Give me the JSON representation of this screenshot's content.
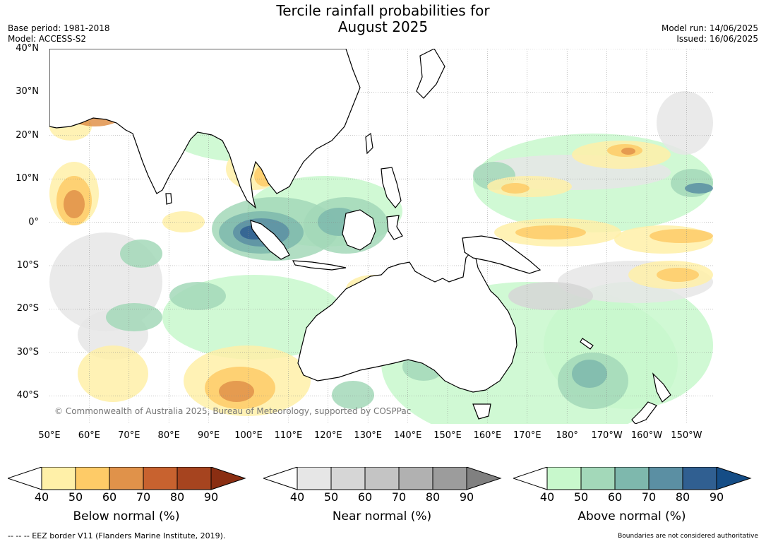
{
  "header": {
    "title_line1": "Tercile rainfall probabilities for",
    "title_line2": "August 2025",
    "base_period": "Base period: 1981-2018",
    "model": "Model: ACCESS-S2",
    "model_run": "Model run: 14/06/2025",
    "issued": "Issued: 16/06/2025"
  },
  "map": {
    "lat_labels": [
      "40°N",
      "30°N",
      "20°N",
      "10°N",
      "0°",
      "10°S",
      "20°S",
      "30°S",
      "40°S"
    ],
    "lon_labels": [
      "50°E",
      "60°E",
      "70°E",
      "80°E",
      "90°E",
      "100°E",
      "110°E",
      "120°E",
      "130°E",
      "140°E",
      "150°E",
      "160°E",
      "170°E",
      "180°",
      "170°W",
      "160°W",
      "150°W"
    ],
    "copyright": "© Commonwealth of Australia 2025, Bureau of Meteorology, supported by COSPPac",
    "colors": {
      "below": [
        "#fff0a8",
        "#fecb67",
        "#e0924a",
        "#c8622f",
        "#a6441f",
        "#8a2e12"
      ],
      "near": [
        "#e6e6e6",
        "#d6d6d6",
        "#c4c4c4",
        "#b1b1b1",
        "#9c9c9c",
        "#808080"
      ],
      "above": [
        "#c8f8cc",
        "#a3d8b9",
        "#7eb8ad",
        "#5b8fa3",
        "#305f91",
        "#154d86"
      ]
    }
  },
  "colorbars": [
    {
      "label": "Below normal (%)",
      "ticks": [
        "40",
        "50",
        "60",
        "70",
        "80",
        "90"
      ]
    },
    {
      "label": "Near normal (%)",
      "ticks": [
        "40",
        "50",
        "60",
        "70",
        "80",
        "90"
      ]
    },
    {
      "label": "Above normal (%)",
      "ticks": [
        "40",
        "50",
        "60",
        "70",
        "80",
        "90"
      ]
    }
  ],
  "footer": {
    "eez_note": "--  --  -- EEZ border V11 (Flanders Marine Institute, 2019).",
    "disclaimer": "Boundaries are not considered authoritative"
  }
}
